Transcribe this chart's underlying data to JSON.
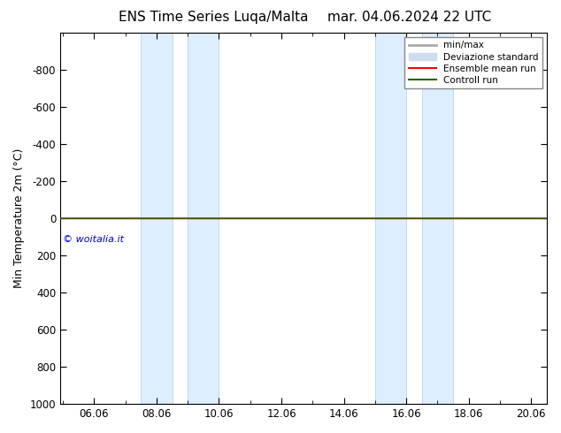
{
  "title": "ENS Time Series Luqa/Malta",
  "title_right": "mar. 04.06.2024 22 UTC",
  "ylabel": "Min Temperature 2m (°C)",
  "watermark": "© woitalia.it",
  "ylim": [
    -1000,
    1000
  ],
  "yticks": [
    -800,
    -600,
    -400,
    -200,
    0,
    200,
    400,
    600,
    800,
    1000
  ],
  "xtick_vals": [
    6,
    8,
    10,
    12,
    14,
    16,
    18,
    20
  ],
  "xtick_labels": [
    "06.06",
    "08.06",
    "10.06",
    "12.06",
    "14.06",
    "16.06",
    "18.06",
    "20.06"
  ],
  "x_min": 4.916,
  "x_max": 20.5,
  "shaded_regions": [
    [
      7.5,
      8.5
    ],
    [
      9.0,
      10.0
    ],
    [
      15.0,
      16.0
    ],
    [
      16.5,
      17.5
    ]
  ],
  "shaded_color": "#ddeeff",
  "shaded_edge_color": "#aaccee",
  "minmax_color": "#aaaaaa",
  "std_color": "#ccddee",
  "ensemble_mean_color": "#ff0000",
  "control_run_color": "#226600",
  "legend_labels": [
    "min/max",
    "Deviazione standard",
    "Ensemble mean run",
    "Controll run"
  ],
  "background_color": "#ffffff",
  "title_fontsize": 11,
  "axis_fontsize": 9,
  "tick_fontsize": 8.5,
  "watermark_color": "#0000cc",
  "watermark_fontsize": 8
}
